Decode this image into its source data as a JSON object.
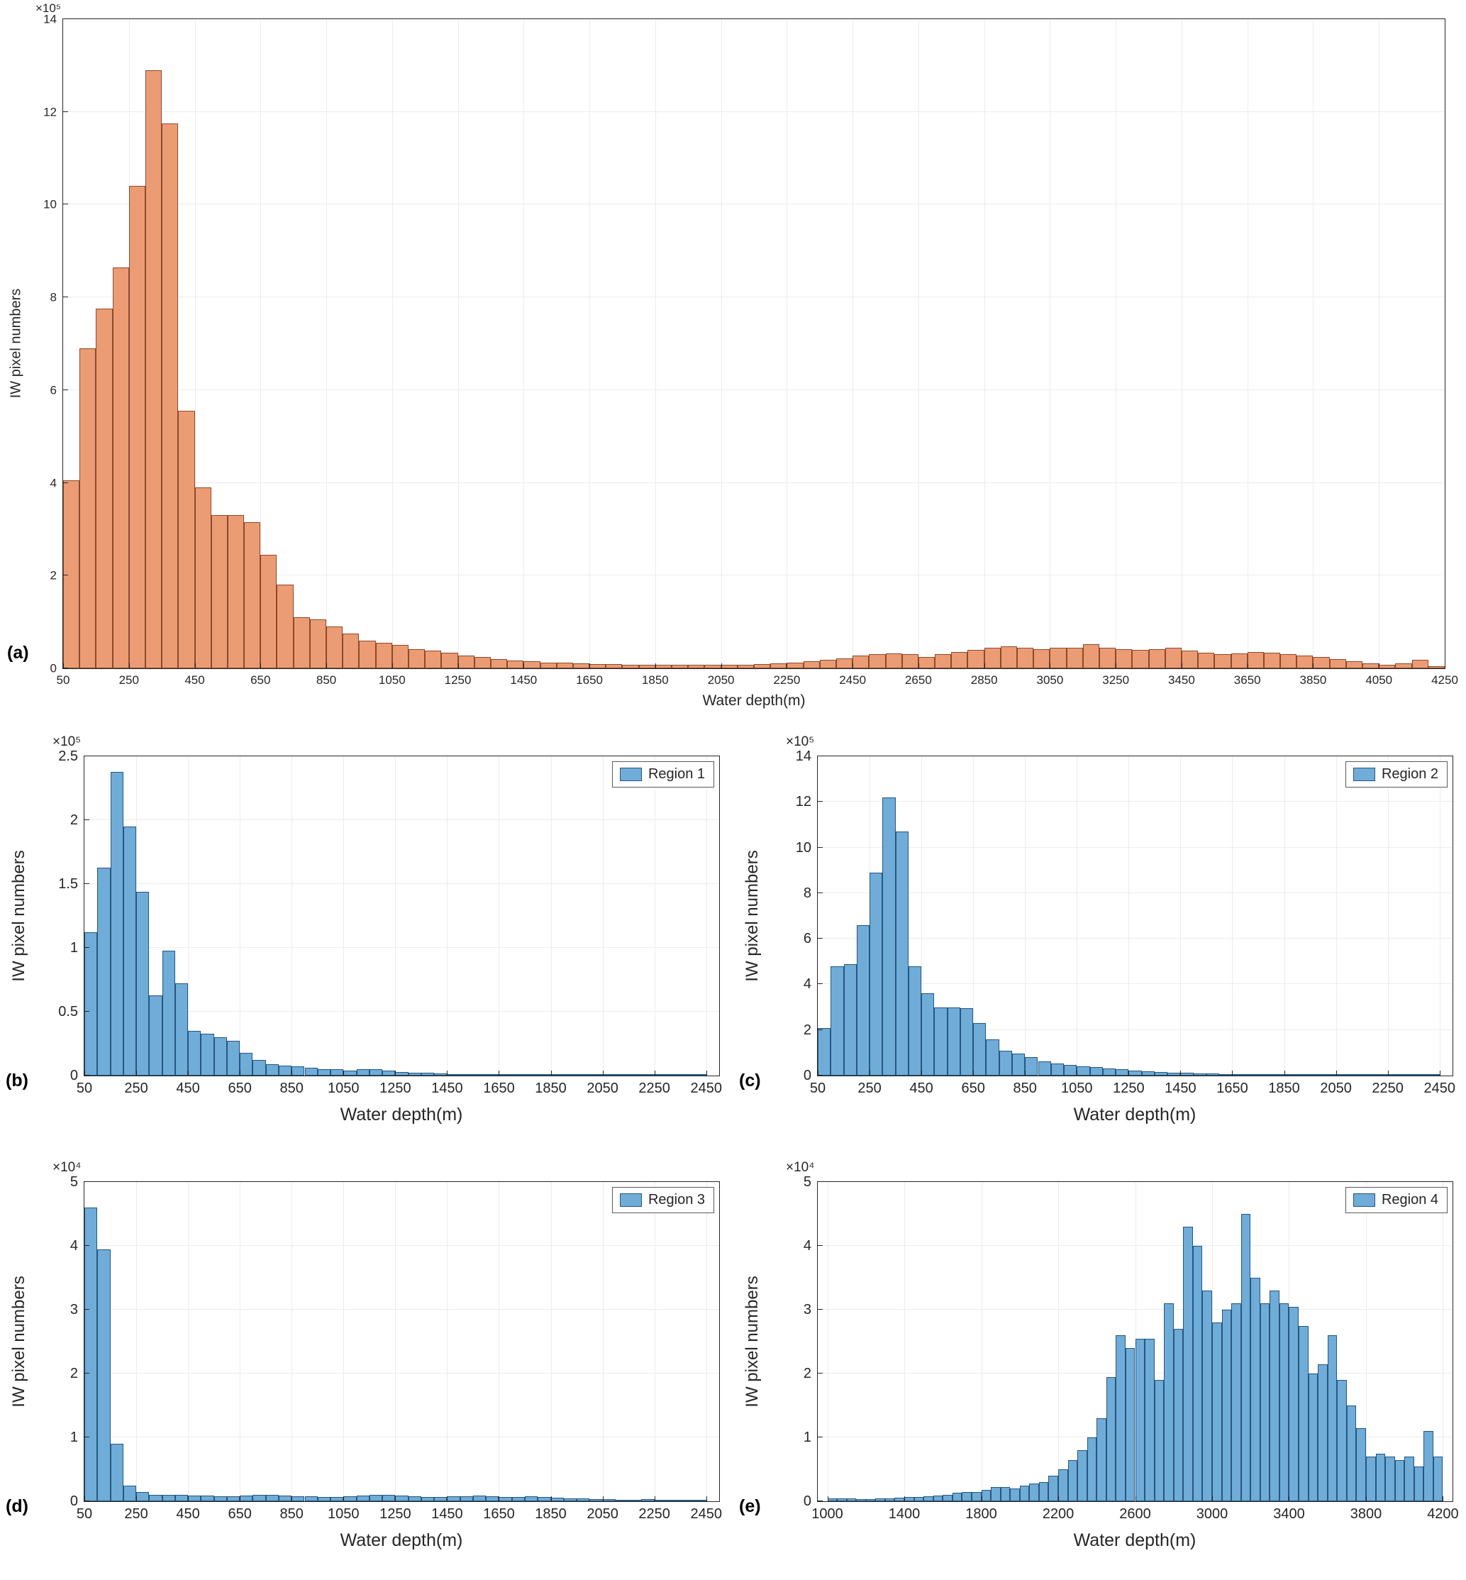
{
  "figure": {
    "background": "#ffffff"
  },
  "chart_data": [
    {
      "type": "bar",
      "panel_label": "(a)",
      "legend": null,
      "xlabel": "Water depth(m)",
      "ylabel": "IW pixel numbers",
      "y_exponent_label": "×10⁵",
      "xlim": [
        50,
        4250
      ],
      "ylim": [
        0,
        14
      ],
      "xticks": [
        50,
        250,
        450,
        650,
        850,
        1050,
        1250,
        1450,
        1650,
        1850,
        2050,
        2250,
        2450,
        2650,
        2850,
        3050,
        3250,
        3450,
        3650,
        3850,
        4050,
        4250
      ],
      "yticks": [
        0,
        2,
        4,
        6,
        8,
        10,
        12,
        14
      ],
      "grid": true,
      "legend_position": "top-right",
      "bin_start": 50,
      "bin_width": 50,
      "face_color": "#EC9C74",
      "edge_color": "#8C4A2B",
      "values": [
        4.05,
        6.9,
        7.75,
        8.65,
        10.4,
        12.9,
        11.75,
        5.55,
        3.9,
        3.3,
        3.3,
        3.15,
        2.45,
        1.8,
        1.1,
        1.05,
        0.9,
        0.75,
        0.6,
        0.55,
        0.5,
        0.42,
        0.38,
        0.33,
        0.28,
        0.24,
        0.2,
        0.17,
        0.15,
        0.13,
        0.12,
        0.1,
        0.09,
        0.09,
        0.08,
        0.08,
        0.07,
        0.07,
        0.07,
        0.07,
        0.08,
        0.08,
        0.09,
        0.1,
        0.12,
        0.15,
        0.18,
        0.22,
        0.28,
        0.3,
        0.32,
        0.3,
        0.25,
        0.3,
        0.35,
        0.4,
        0.45,
        0.48,
        0.45,
        0.42,
        0.44,
        0.45,
        0.52,
        0.45,
        0.42,
        0.4,
        0.42,
        0.44,
        0.38,
        0.33,
        0.3,
        0.32,
        0.35,
        0.33,
        0.3,
        0.28,
        0.25,
        0.2,
        0.15,
        0.1,
        0.08,
        0.1,
        0.18,
        0.05
      ]
    },
    {
      "type": "bar",
      "panel_label": "(b)",
      "legend": "Region 1",
      "xlabel": "Water depth(m)",
      "ylabel": "IW pixel numbers",
      "y_exponent_label": "×10⁵",
      "xlim": [
        50,
        2500
      ],
      "ylim": [
        0,
        2.5
      ],
      "xticks": [
        50,
        250,
        450,
        650,
        850,
        1050,
        1250,
        1450,
        1650,
        1850,
        2050,
        2250,
        2450
      ],
      "yticks": [
        0,
        0.5,
        1,
        1.5,
        2,
        2.5
      ],
      "grid": true,
      "legend_position": "top-right",
      "bin_start": 50,
      "bin_width": 50,
      "face_color": "#6FACD7",
      "edge_color": "#27567F",
      "values": [
        1.12,
        1.63,
        2.38,
        1.95,
        1.44,
        0.63,
        0.98,
        0.72,
        0.35,
        0.33,
        0.3,
        0.27,
        0.18,
        0.12,
        0.09,
        0.08,
        0.07,
        0.06,
        0.05,
        0.05,
        0.04,
        0.05,
        0.05,
        0.04,
        0.03,
        0.02,
        0.02,
        0.015,
        0.01,
        0.01,
        0.008,
        0.006,
        0.005,
        0.004,
        0.004,
        0.003,
        0.003,
        0.002,
        0.002,
        0.002,
        0.002,
        0.001,
        0.001,
        0.001,
        0.001,
        0.001,
        0.001,
        0.001
      ]
    },
    {
      "type": "bar",
      "panel_label": "(c)",
      "legend": "Region 2",
      "xlabel": "Water depth(m)",
      "ylabel": "IW pixel numbers",
      "y_exponent_label": "×10⁵",
      "xlim": [
        50,
        2500
      ],
      "ylim": [
        0,
        14
      ],
      "xticks": [
        50,
        250,
        450,
        650,
        850,
        1050,
        1250,
        1450,
        1650,
        1850,
        2050,
        2250,
        2450
      ],
      "yticks": [
        0,
        2,
        4,
        6,
        8,
        10,
        12,
        14
      ],
      "grid": true,
      "legend_position": "top-right",
      "bin_start": 50,
      "bin_width": 50,
      "face_color": "#6FACD7",
      "edge_color": "#27567F",
      "values": [
        2.1,
        4.8,
        4.9,
        6.6,
        8.9,
        12.2,
        10.7,
        4.8,
        3.6,
        3.0,
        3.0,
        2.95,
        2.3,
        1.6,
        1.1,
        0.95,
        0.8,
        0.62,
        0.52,
        0.47,
        0.42,
        0.37,
        0.32,
        0.27,
        0.22,
        0.18,
        0.15,
        0.13,
        0.11,
        0.09,
        0.08,
        0.07,
        0.06,
        0.05,
        0.05,
        0.04,
        0.04,
        0.03,
        0.03,
        0.03,
        0.02,
        0.02,
        0.02,
        0.02,
        0.01,
        0.01,
        0.01,
        0.01
      ]
    },
    {
      "type": "bar",
      "panel_label": "(d)",
      "legend": "Region 3",
      "xlabel": "Water depth(m)",
      "ylabel": "IW pixel numbers",
      "y_exponent_label": "×10⁴",
      "xlim": [
        50,
        2500
      ],
      "ylim": [
        0,
        5
      ],
      "xticks": [
        50,
        250,
        450,
        650,
        850,
        1050,
        1250,
        1450,
        1650,
        1850,
        2050,
        2250,
        2450
      ],
      "yticks": [
        0,
        1,
        2,
        3,
        4,
        5
      ],
      "grid": true,
      "legend_position": "top-right",
      "bin_start": 50,
      "bin_width": 50,
      "face_color": "#6FACD7",
      "edge_color": "#27567F",
      "values": [
        4.6,
        3.95,
        0.9,
        0.25,
        0.15,
        0.1,
        0.1,
        0.1,
        0.09,
        0.09,
        0.08,
        0.08,
        0.09,
        0.1,
        0.1,
        0.09,
        0.08,
        0.08,
        0.07,
        0.07,
        0.08,
        0.09,
        0.1,
        0.1,
        0.09,
        0.08,
        0.07,
        0.07,
        0.08,
        0.08,
        0.09,
        0.08,
        0.07,
        0.07,
        0.08,
        0.07,
        0.06,
        0.05,
        0.04,
        0.03,
        0.03,
        0.02,
        0.02,
        0.03,
        0.02,
        0.02,
        0.01,
        0.01
      ]
    },
    {
      "type": "bar",
      "panel_label": "(e)",
      "legend": "Region 4",
      "xlabel": "Water depth(m)",
      "ylabel": "IW pixel numbers",
      "y_exponent_label": "×10⁴",
      "xlim": [
        950,
        4250
      ],
      "ylim": [
        0,
        5
      ],
      "xticks": [
        1000,
        1400,
        1800,
        2200,
        2600,
        3000,
        3400,
        3800,
        4200
      ],
      "yticks": [
        0,
        1,
        2,
        3,
        4,
        5
      ],
      "grid": true,
      "legend_position": "top-right",
      "bin_start": 1000,
      "bin_width": 50,
      "face_color": "#6FACD7",
      "edge_color": "#27567F",
      "values": [
        0.05,
        0.05,
        0.04,
        0.03,
        0.03,
        0.04,
        0.05,
        0.06,
        0.07,
        0.07,
        0.08,
        0.09,
        0.1,
        0.13,
        0.15,
        0.15,
        0.18,
        0.22,
        0.22,
        0.2,
        0.25,
        0.28,
        0.3,
        0.4,
        0.5,
        0.65,
        0.8,
        1.0,
        1.3,
        1.95,
        2.6,
        2.4,
        2.55,
        2.55,
        1.9,
        3.1,
        2.7,
        4.3,
        4.0,
        3.3,
        2.8,
        3.0,
        3.1,
        4.5,
        3.5,
        3.1,
        3.3,
        3.1,
        3.05,
        2.75,
        2.0,
        2.15,
        2.6,
        1.9,
        1.5,
        1.15,
        0.7,
        0.75,
        0.7,
        0.65,
        0.7,
        0.55,
        1.1,
        0.7
      ]
    }
  ]
}
